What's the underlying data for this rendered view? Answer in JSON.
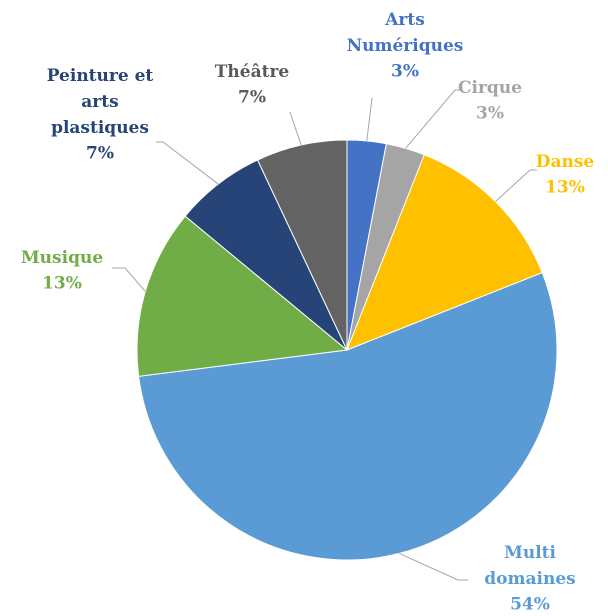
{
  "chart_data": {
    "type": "pie",
    "categories": [
      "Arts Numériques",
      "Cirque",
      "Danse",
      "Multi domaines",
      "Musique",
      "Peinture et arts plastiques",
      "Théâtre"
    ],
    "values": [
      3,
      3,
      13,
      54,
      13,
      7,
      7
    ],
    "value_labels": [
      "3%",
      "3%",
      "13%",
      "54%",
      "13%",
      "7%",
      "7%"
    ],
    "colors": [
      "#4472c4",
      "#a5a5a5",
      "#ffc000",
      "#5b9bd5",
      "#70ad47",
      "#264478",
      "#636363"
    ],
    "label_colors": [
      "#4472c4",
      "#a5a5a5",
      "#ffc000",
      "#5b9bd5",
      "#70ad47",
      "#264478",
      "#595959"
    ]
  }
}
